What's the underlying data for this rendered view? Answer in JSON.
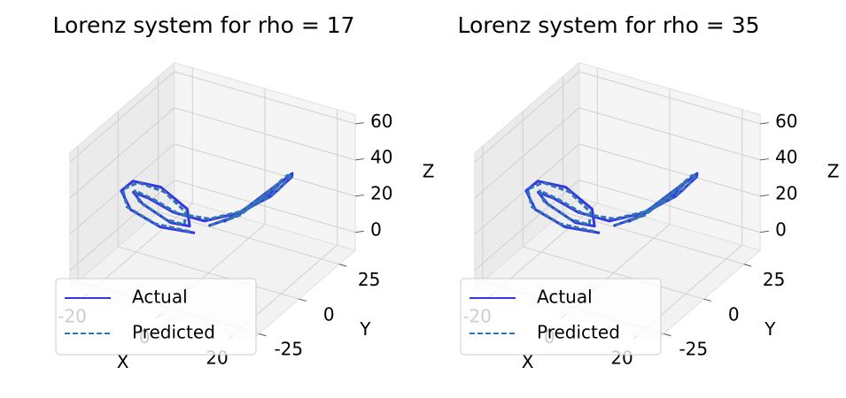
{
  "chart_data": [
    {
      "type": "line3d",
      "title": "Lorenz system for rho = 17",
      "xlabel": "X",
      "ylabel": "Y",
      "zlabel": "Z",
      "xlim": [
        -25,
        25
      ],
      "ylim": [
        -30,
        35
      ],
      "zlim": [
        -10,
        65
      ],
      "xticks": [
        -20,
        0,
        20
      ],
      "yticks": [
        -25,
        0,
        25
      ],
      "zticks": [
        0,
        20,
        40,
        60
      ],
      "legend": "lower left",
      "series": [
        {
          "name": "Actual",
          "color": "#3535e6",
          "linestyle": "solid",
          "x": [
            -2,
            -8,
            -14,
            -17,
            -16,
            -11,
            -5,
            -3,
            -6,
            -12,
            -15,
            -13,
            -8,
            -2,
            5,
            11,
            15,
            16,
            13,
            7,
            3,
            6,
            11,
            14,
            12,
            6,
            0
          ],
          "y": [
            -4,
            -12,
            -17,
            -16,
            -11,
            -5,
            -2,
            -5,
            -10,
            -14,
            -13,
            -8,
            -4,
            2,
            8,
            14,
            18,
            16,
            10,
            4,
            3,
            8,
            13,
            14,
            9,
            4,
            0
          ],
          "z": [
            14,
            20,
            30,
            38,
            40,
            35,
            24,
            18,
            22,
            32,
            36,
            30,
            22,
            16,
            20,
            28,
            38,
            42,
            36,
            24,
            18,
            22,
            32,
            38,
            32,
            22,
            16
          ]
        },
        {
          "name": "Predicted",
          "color": "#2f74b5",
          "linestyle": "dashed",
          "x": [
            -3,
            -9,
            -15,
            -17,
            -15,
            -10,
            -5,
            -4,
            -7,
            -13,
            -15,
            -12,
            -7,
            -1,
            6,
            12,
            15,
            15,
            12,
            7,
            4,
            7,
            12,
            14,
            11,
            5,
            0
          ],
          "y": [
            -5,
            -13,
            -17,
            -15,
            -10,
            -5,
            -3,
            -6,
            -11,
            -14,
            -12,
            -7,
            -3,
            3,
            9,
            15,
            18,
            15,
            9,
            4,
            4,
            9,
            13,
            13,
            8,
            3,
            0
          ],
          "z": [
            15,
            22,
            31,
            38,
            39,
            33,
            23,
            19,
            24,
            33,
            36,
            29,
            21,
            17,
            21,
            30,
            39,
            41,
            34,
            23,
            19,
            24,
            33,
            38,
            31,
            21,
            16
          ]
        }
      ]
    },
    {
      "type": "line3d",
      "title": "Lorenz system for rho = 35",
      "xlabel": "X",
      "ylabel": "Y",
      "zlabel": "Z",
      "xlim": [
        -25,
        25
      ],
      "ylim": [
        -30,
        35
      ],
      "zlim": [
        -10,
        65
      ],
      "xticks": [
        -20,
        0,
        20
      ],
      "yticks": [
        -25,
        0,
        25
      ],
      "zticks": [
        0,
        20,
        40,
        60
      ],
      "legend": "lower left",
      "series": [
        {
          "name": "Actual",
          "color": "#3535e6",
          "linestyle": "solid",
          "x": [
            -2,
            -8,
            -14,
            -17,
            -16,
            -11,
            -5,
            -3,
            -6,
            -12,
            -15,
            -13,
            -8,
            -2,
            5,
            11,
            15,
            16,
            13,
            7,
            3,
            6,
            11,
            14,
            12,
            6,
            0
          ],
          "y": [
            -4,
            -12,
            -17,
            -16,
            -11,
            -5,
            -2,
            -5,
            -10,
            -14,
            -13,
            -8,
            -4,
            2,
            8,
            14,
            18,
            16,
            10,
            4,
            3,
            8,
            13,
            14,
            9,
            4,
            0
          ],
          "z": [
            14,
            20,
            30,
            38,
            40,
            35,
            24,
            18,
            22,
            32,
            36,
            30,
            22,
            16,
            20,
            28,
            38,
            42,
            36,
            24,
            18,
            22,
            32,
            38,
            32,
            22,
            16
          ]
        },
        {
          "name": "Predicted",
          "color": "#2f74b5",
          "linestyle": "dashed",
          "x": [
            -3,
            -9,
            -15,
            -17,
            -15,
            -10,
            -5,
            -4,
            -7,
            -13,
            -15,
            -12,
            -7,
            -1,
            6,
            12,
            15,
            15,
            12,
            7,
            4,
            7,
            12,
            14,
            11,
            5,
            0
          ],
          "y": [
            -5,
            -13,
            -17,
            -15,
            -10,
            -5,
            -3,
            -6,
            -11,
            -14,
            -12,
            -7,
            -3,
            3,
            9,
            15,
            18,
            15,
            9,
            4,
            4,
            9,
            13,
            13,
            8,
            3,
            0
          ],
          "z": [
            15,
            22,
            31,
            38,
            39,
            33,
            23,
            19,
            24,
            33,
            36,
            29,
            21,
            17,
            21,
            30,
            39,
            41,
            34,
            23,
            19,
            24,
            33,
            38,
            31,
            21,
            16
          ]
        }
      ]
    }
  ]
}
